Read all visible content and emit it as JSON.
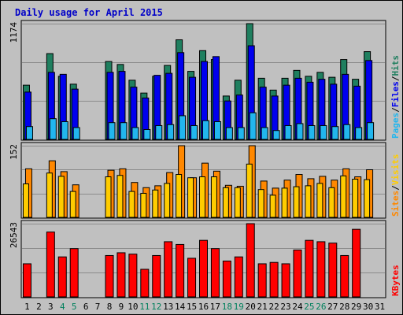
{
  "title": "Daily usage for April 2015",
  "colors": {
    "hits": "#1f7f5f",
    "files": "#0000ee",
    "pages": "#22b6ee",
    "visits": "#ffcc00",
    "sites": "#ff8800",
    "kbytes": "#ff0000",
    "grid": "#8b8b8b",
    "panel_bg": "#c0c0c0",
    "weekend_label": "#00805c",
    "weekday_label": "#000000"
  },
  "chart_data": [
    {
      "type": "bar",
      "panel": "top",
      "legend": [
        "Pages",
        "/",
        "Files",
        "/",
        "Hits"
      ],
      "legend_colors": [
        "#22b6ee",
        "#000000",
        "#0000ee",
        "#000000",
        "#1f7f5f"
      ],
      "ylim": [
        0,
        1174
      ],
      "max_label": "1174",
      "categories": [
        "1",
        "2",
        "3",
        "4",
        "5",
        "6",
        "7",
        "8",
        "9",
        "10",
        "11",
        "12",
        "13",
        "14",
        "15",
        "16",
        "17",
        "18",
        "19",
        "20",
        "21",
        "22",
        "23",
        "24",
        "25",
        "26",
        "27",
        "28",
        "29",
        "30",
        "31"
      ],
      "series": [
        {
          "name": "Hits",
          "values": [
            550,
            0,
            870,
            640,
            560,
            0,
            0,
            790,
            760,
            600,
            470,
            640,
            750,
            1010,
            690,
            900,
            810,
            440,
            600,
            1174,
            620,
            500,
            620,
            700,
            640,
            680,
            630,
            810,
            610,
            890,
            0
          ]
        },
        {
          "name": "Files",
          "values": [
            480,
            0,
            680,
            660,
            510,
            0,
            0,
            680,
            690,
            530,
            420,
            650,
            670,
            880,
            630,
            790,
            840,
            390,
            450,
            950,
            530,
            440,
            550,
            620,
            580,
            610,
            560,
            660,
            540,
            800,
            0
          ]
        },
        {
          "name": "Pages",
          "values": [
            130,
            0,
            210,
            180,
            120,
            0,
            0,
            170,
            170,
            120,
            100,
            140,
            150,
            240,
            140,
            190,
            180,
            120,
            120,
            270,
            120,
            90,
            140,
            160,
            140,
            140,
            130,
            150,
            120,
            170,
            0
          ]
        }
      ]
    },
    {
      "type": "bar",
      "panel": "middle",
      "legend": [
        "Sites",
        "/",
        "Visits"
      ],
      "legend_colors": [
        "#ff8800",
        "#000000",
        "#ffcc00"
      ],
      "ylim": [
        0,
        152
      ],
      "max_label": "152",
      "categories": [
        "1",
        "2",
        "3",
        "4",
        "5",
        "6",
        "7",
        "8",
        "9",
        "10",
        "11",
        "12",
        "13",
        "14",
        "15",
        "16",
        "17",
        "18",
        "19",
        "20",
        "21",
        "22",
        "23",
        "24",
        "25",
        "26",
        "27",
        "28",
        "29",
        "30",
        "31"
      ],
      "series": [
        {
          "name": "Sites",
          "values": [
            103,
            0,
            120,
            97,
            69,
            0,
            0,
            100,
            103,
            74,
            63,
            67,
            95,
            152,
            84,
            115,
            98,
            68,
            66,
            152,
            77,
            62,
            79,
            91,
            82,
            87,
            79,
            103,
            86,
            101,
            0
          ]
        },
        {
          "name": "Visits",
          "values": [
            71,
            0,
            94,
            87,
            55,
            0,
            0,
            86,
            89,
            55,
            51,
            58,
            72,
            91,
            84,
            86,
            86,
            63,
            63,
            113,
            59,
            47,
            62,
            65,
            67,
            72,
            63,
            88,
            81,
            80,
            0
          ]
        }
      ]
    },
    {
      "type": "bar",
      "panel": "bottom",
      "legend": [
        "KBytes"
      ],
      "legend_colors": [
        "#ff0000"
      ],
      "ylim": [
        0,
        26543
      ],
      "max_label": "26543",
      "categories": [
        "1",
        "2",
        "3",
        "4",
        "5",
        "6",
        "7",
        "8",
        "9",
        "10",
        "11",
        "12",
        "13",
        "14",
        "15",
        "16",
        "17",
        "18",
        "19",
        "20",
        "21",
        "22",
        "23",
        "24",
        "25",
        "26",
        "27",
        "28",
        "29",
        "30",
        "31"
      ],
      "series": [
        {
          "name": "KBytes",
          "values": [
            12000,
            0,
            23500,
            14500,
            17500,
            0,
            0,
            15000,
            16000,
            15500,
            10000,
            15000,
            20000,
            19000,
            14000,
            20500,
            17500,
            13000,
            14500,
            26543,
            12000,
            12500,
            12000,
            17000,
            20500,
            20000,
            19500,
            15000,
            24500,
            0,
            0
          ]
        }
      ]
    }
  ],
  "x_axis": {
    "labels": [
      "1",
      "2",
      "3",
      "4",
      "5",
      "6",
      "7",
      "8",
      "9",
      "10",
      "11",
      "12",
      "13",
      "14",
      "15",
      "16",
      "17",
      "18",
      "19",
      "20",
      "21",
      "22",
      "23",
      "24",
      "25",
      "26",
      "27",
      "28",
      "29",
      "30",
      "31"
    ],
    "weekend_days": [
      "4",
      "5",
      "11",
      "12",
      "18",
      "19",
      "25",
      "26"
    ]
  }
}
